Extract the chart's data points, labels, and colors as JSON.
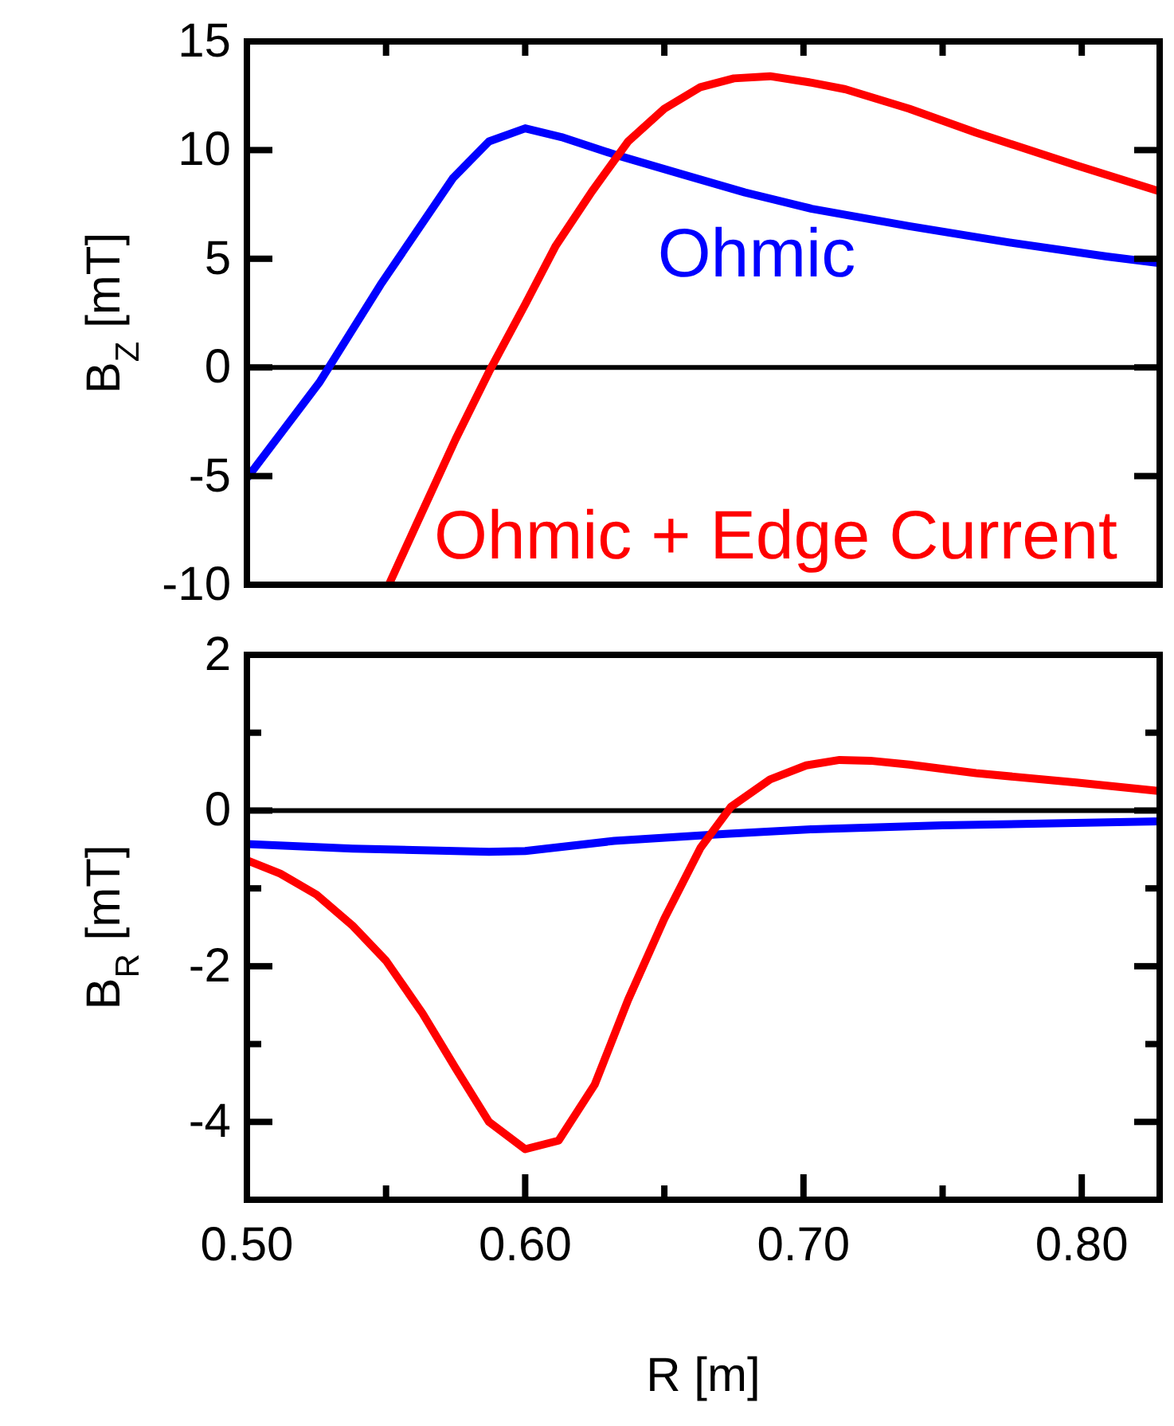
{
  "chart_data": [
    {
      "type": "line",
      "ylabel": "B$_{Z}$ [mT]",
      "tick_labels": "y",
      "xlim": [
        0.5,
        0.828
      ],
      "ylim": [
        -10,
        15
      ],
      "xticks": [
        {
          "value": 0.5,
          "label": null
        },
        {
          "value": 0.55,
          "label": null
        },
        {
          "value": 0.6,
          "label": null
        },
        {
          "value": 0.65,
          "label": null
        },
        {
          "value": 0.7,
          "label": null
        },
        {
          "value": 0.75,
          "label": null
        },
        {
          "value": 0.8,
          "label": null
        }
      ],
      "yticks": [
        15,
        10,
        5,
        0,
        -5,
        -10
      ],
      "ref_lines": [
        {
          "axis": "y",
          "value": 0,
          "color": "#000000"
        }
      ],
      "series": [
        {
          "name": "Ohmic",
          "color": "#0000ff",
          "x": [
            0.5,
            0.526,
            0.548,
            0.574,
            0.587,
            0.6,
            0.613,
            0.632,
            0.656,
            0.679,
            0.703,
            0.738,
            0.774,
            0.809,
            0.828
          ],
          "values": [
            -5.1,
            -0.7,
            3.8,
            8.7,
            10.4,
            11.0,
            10.6,
            9.8,
            8.9,
            8.05,
            7.3,
            6.5,
            5.75,
            5.1,
            4.8
          ]
        },
        {
          "name": "Ohmic + Edge Current",
          "color": "#ff0000",
          "x": [
            0.551,
            0.561,
            0.575,
            0.587,
            0.6,
            0.611,
            0.624,
            0.637,
            0.65,
            0.663,
            0.675,
            0.688,
            0.703,
            0.715,
            0.738,
            0.762,
            0.798,
            0.828
          ],
          "values": [
            -10,
            -7.2,
            -3.3,
            -0.2,
            2.9,
            5.6,
            8.1,
            10.4,
            11.9,
            12.9,
            13.3,
            13.4,
            13.1,
            12.8,
            11.9,
            10.8,
            9.3,
            8.1
          ]
        }
      ]
    },
    {
      "type": "line",
      "xlabel": "R [m]",
      "ylabel": "B$_{R}$ [mT]",
      "xlim": [
        0.5,
        0.828
      ],
      "ylim": [
        -5,
        2
      ],
      "xticks": [
        {
          "value": 0.5,
          "label": "0.50"
        },
        {
          "value": 0.55,
          "label": null
        },
        {
          "value": 0.6,
          "label": "0.60"
        },
        {
          "value": 0.65,
          "label": null
        },
        {
          "value": 0.7,
          "label": "0.70"
        },
        {
          "value": 0.75,
          "label": null
        },
        {
          "value": 0.8,
          "label": "0.80"
        }
      ],
      "yticks": [
        2,
        {
          "value": 1,
          "label": null
        },
        0,
        {
          "value": -1,
          "label": null
        },
        -2,
        {
          "value": -3,
          "label": null
        },
        -4
      ],
      "ref_lines": [
        {
          "axis": "y",
          "value": 0,
          "color": "#000000"
        }
      ],
      "series": [
        {
          "color": "#0000ff",
          "x": [
            0.5,
            0.538,
            0.587,
            0.6,
            0.632,
            0.672,
            0.703,
            0.75,
            0.828
          ],
          "values": [
            -0.43,
            -0.49,
            -0.53,
            -0.52,
            -0.39,
            -0.3,
            -0.24,
            -0.19,
            -0.14
          ]
        },
        {
          "color": "#ff0000",
          "x": [
            0.5,
            0.512,
            0.525,
            0.538,
            0.55,
            0.563,
            0.575,
            0.587,
            0.6,
            0.612,
            0.625,
            0.637,
            0.65,
            0.663,
            0.674,
            0.688,
            0.701,
            0.713,
            0.724,
            0.738,
            0.762,
            0.798,
            0.828
          ],
          "values": [
            -0.64,
            -0.81,
            -1.08,
            -1.48,
            -1.93,
            -2.6,
            -3.31,
            -4.0,
            -4.35,
            -4.24,
            -3.52,
            -2.43,
            -1.39,
            -0.48,
            0.05,
            0.4,
            0.58,
            0.65,
            0.64,
            0.59,
            0.48,
            0.36,
            0.25
          ]
        }
      ]
    }
  ]
}
